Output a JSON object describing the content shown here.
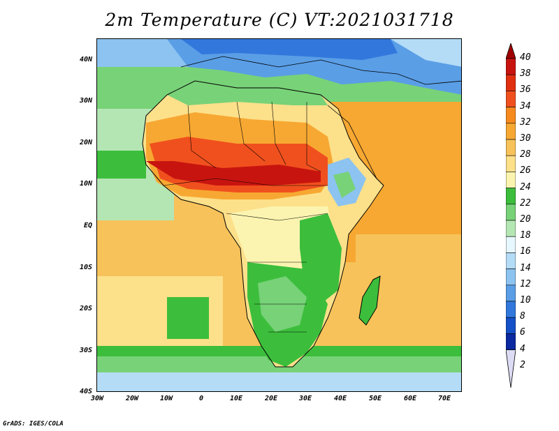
{
  "title": "2m Temperature (C) VT:2021031718",
  "credit": "GrADS: IGES/COLA",
  "lat_labels": [
    "40N",
    "30N",
    "20N",
    "10N",
    "EQ",
    "10S",
    "20S",
    "30S",
    "40S"
  ],
  "lon_labels": [
    "30W",
    "20W",
    "10W",
    "0",
    "10E",
    "20E",
    "30E",
    "40E",
    "50E",
    "60E",
    "70E"
  ],
  "colorbar": {
    "labels": [
      "40",
      "38",
      "36",
      "34",
      "32",
      "30",
      "28",
      "26",
      "24",
      "22",
      "20",
      "18",
      "16",
      "14",
      "12",
      "10",
      "8",
      "6",
      "4",
      "2"
    ],
    "colors": [
      "#a00000",
      "#c8140f",
      "#e0300f",
      "#f0501e",
      "#f78a1e",
      "#f7a832",
      "#f7c25a",
      "#fde08a",
      "#fbf4b0",
      "#3cbe3c",
      "#78d278",
      "#b4e6b4",
      "#e6f7ff",
      "#b4dcf7",
      "#8cc3f0",
      "#5a9ee6",
      "#3278dc",
      "#1450c8",
      "#0a28a0",
      "#0a0a64"
    ]
  }
}
